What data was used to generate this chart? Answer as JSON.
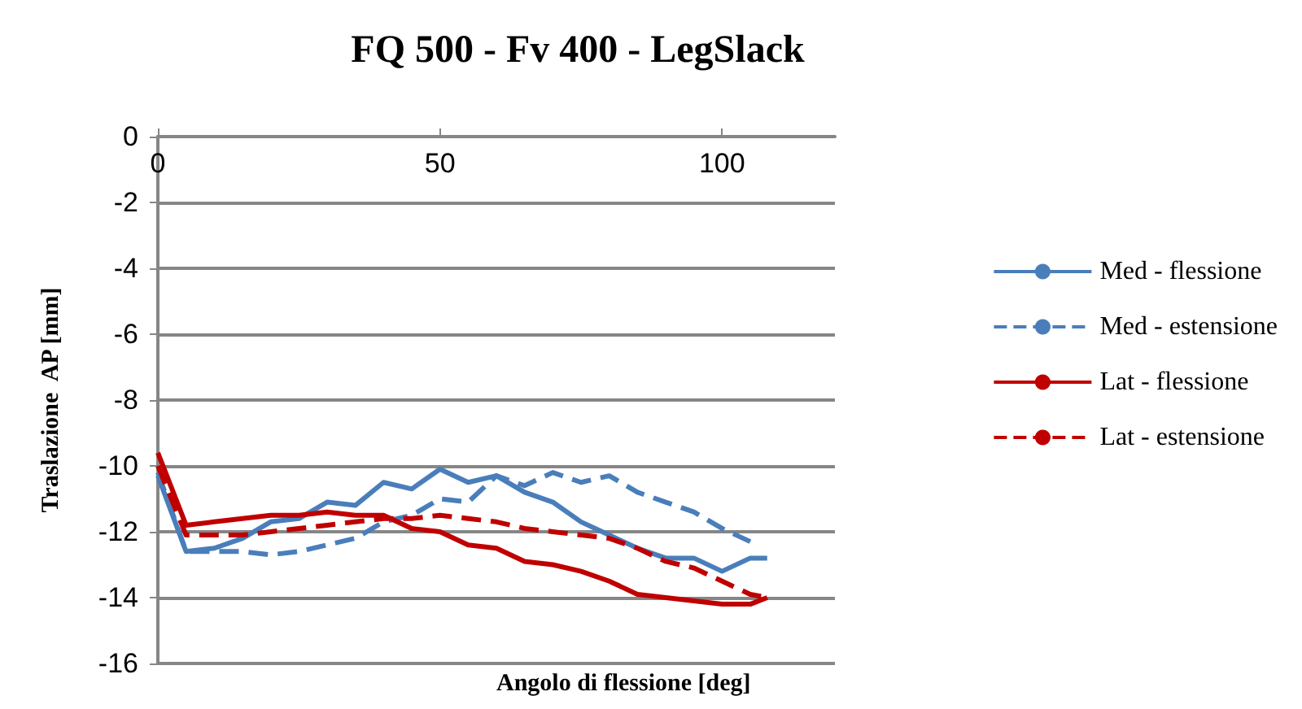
{
  "chart_data": {
    "type": "line",
    "title": "FQ 500 - Fv 400 - LegSlack",
    "xlabel": "Angolo di flessione [deg]",
    "ylabel": "Traslazione  AP [mm]",
    "xlim": [
      0,
      120
    ],
    "xticks": [
      0,
      50,
      100
    ],
    "ylim": [
      -16,
      0
    ],
    "yticks": [
      -16,
      -14,
      -12,
      -10,
      -8,
      -6,
      -4,
      -2,
      0
    ],
    "grid": "y",
    "legend": "right",
    "marker": "none",
    "series": [
      {
        "name": "Med - flessione",
        "color": "#4a7ebb",
        "line_style": "solid",
        "x": [
          0,
          5,
          10,
          15,
          20,
          25,
          30,
          35,
          40,
          45,
          50,
          55,
          60,
          65,
          70,
          75,
          80,
          85,
          90,
          95,
          100,
          105,
          108
        ],
        "values": [
          -10.3,
          -12.6,
          -12.5,
          -12.2,
          -11.7,
          -11.6,
          -11.1,
          -11.2,
          -10.5,
          -10.7,
          -10.1,
          -10.5,
          -10.3,
          -10.8,
          -11.1,
          -11.7,
          -12.1,
          -12.5,
          -12.8,
          -12.8,
          -13.2,
          -12.8,
          -12.8
        ]
      },
      {
        "name": "Med - estensione",
        "color": "#4a7ebb",
        "line_style": "dashed",
        "x": [
          0,
          5,
          10,
          15,
          20,
          25,
          30,
          35,
          40,
          45,
          50,
          55,
          60,
          65,
          70,
          75,
          80,
          85,
          90,
          95,
          100,
          105
        ],
        "values": [
          -10.2,
          -12.6,
          -12.6,
          -12.6,
          -12.7,
          -12.6,
          -12.4,
          -12.2,
          -11.7,
          -11.5,
          -11.0,
          -11.1,
          -10.3,
          -10.6,
          -10.2,
          -10.5,
          -10.3,
          -10.8,
          -11.1,
          -11.4,
          -11.9,
          -12.3
        ]
      },
      {
        "name": "Lat - flessione",
        "color": "#c00000",
        "line_style": "solid",
        "x": [
          0,
          5,
          10,
          15,
          20,
          25,
          30,
          35,
          40,
          45,
          50,
          55,
          60,
          65,
          70,
          75,
          80,
          85,
          90,
          95,
          100,
          105,
          108
        ],
        "values": [
          -9.6,
          -11.8,
          -11.7,
          -11.6,
          -11.5,
          -11.5,
          -11.4,
          -11.5,
          -11.5,
          -11.9,
          -12.0,
          -12.4,
          -12.5,
          -12.9,
          -13.0,
          -13.2,
          -13.5,
          -13.9,
          -14.0,
          -14.1,
          -14.2,
          -14.2,
          -14.0
        ]
      },
      {
        "name": "Lat - estensione",
        "color": "#c00000",
        "line_style": "dashed",
        "x": [
          0,
          5,
          10,
          15,
          20,
          25,
          30,
          35,
          40,
          45,
          50,
          55,
          60,
          65,
          70,
          75,
          80,
          85,
          90,
          95,
          100,
          105,
          108
        ],
        "values": [
          -10.0,
          -12.1,
          -12.1,
          -12.1,
          -12.0,
          -11.9,
          -11.8,
          -11.7,
          -11.6,
          -11.6,
          -11.5,
          -11.6,
          -11.7,
          -11.9,
          -12.0,
          -12.1,
          -12.2,
          -12.5,
          -12.9,
          -13.1,
          -13.5,
          -13.9,
          -14.0
        ]
      }
    ]
  }
}
